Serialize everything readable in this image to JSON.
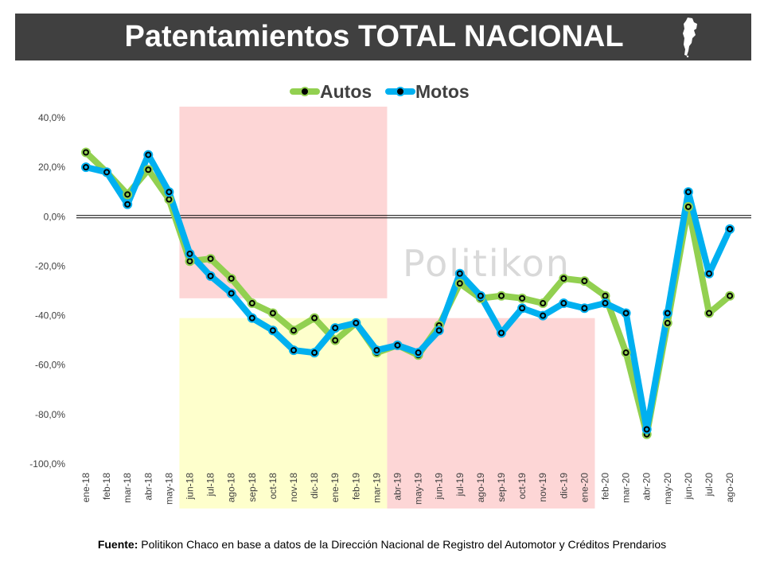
{
  "header": {
    "title": "Patentamientos TOTAL NACIONAL"
  },
  "watermark": "Politikon",
  "footer": {
    "label": "Fuente:",
    "text": "Politikon Chaco en base a datos de la Dirección Nacional de Registro del Automotor y Créditos Prendarios"
  },
  "colors": {
    "autos": "#92d050",
    "motos": "#00b0f0",
    "header_bg": "#404040",
    "band_red": "#fdd6d6",
    "band_yellow": "#feffcc"
  },
  "chart_data": {
    "type": "line",
    "categories": [
      "ene-18",
      "feb-18",
      "mar-18",
      "abr-18",
      "may-18",
      "jun-18",
      "jul-18",
      "ago-18",
      "sep-18",
      "oct-18",
      "nov-18",
      "dic-18",
      "ene-19",
      "feb-19",
      "mar-19",
      "abr-19",
      "may-19",
      "jun-19",
      "jul-19",
      "ago-19",
      "sep-19",
      "oct-19",
      "nov-19",
      "dic-19",
      "ene-20",
      "feb-20",
      "mar-20",
      "abr-20",
      "may-20",
      "jun-20",
      "jul-20",
      "ago-20"
    ],
    "series": [
      {
        "name": "Autos",
        "values": [
          26,
          18,
          9,
          19,
          7,
          -18,
          -17,
          -25,
          -35,
          -39,
          -46,
          -41,
          -50,
          -43,
          -55,
          -52,
          -56,
          -44,
          -27,
          -33,
          -32,
          -33,
          -35,
          -25,
          -26,
          -32,
          -55,
          -88,
          -43,
          4,
          -39,
          -32
        ]
      },
      {
        "name": "Motos",
        "values": [
          20,
          18,
          5,
          25,
          10,
          -15,
          -24,
          -31,
          -41,
          -46,
          -54,
          -55,
          -45,
          -43,
          -54,
          -52,
          -55,
          -46,
          -23,
          -32,
          -47,
          -37,
          -40,
          -35,
          -37,
          -35,
          -39,
          -86,
          -39,
          10,
          -23,
          -5
        ]
      }
    ],
    "ylim": [
      -100,
      40
    ],
    "yticks": [
      "40,0%",
      "20,0%",
      "0,0%",
      "-20,0%",
      "-40,0%",
      "-60,0%",
      "-80,0%",
      "-100,0%"
    ],
    "legend_position": "top-center",
    "grid": false,
    "xlabel": "",
    "ylabel": ""
  }
}
